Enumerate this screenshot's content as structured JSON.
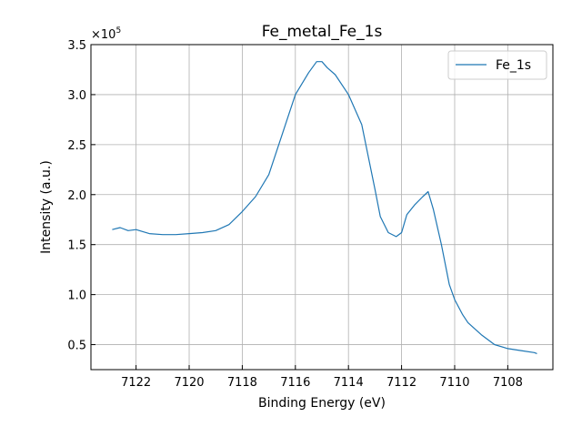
{
  "chart_data": {
    "type": "line",
    "title": "Fe_metal_Fe_1s",
    "xlabel": "Binding Energy (eV)",
    "ylabel": "Intensity (a.u.)",
    "y_scale_label": "×10",
    "y_scale_exp": "5",
    "x_reversed": true,
    "xlim": [
      7123.7,
      7106.3
    ],
    "ylim": [
      0.25,
      3.5
    ],
    "x_ticks": [
      7122,
      7120,
      7118,
      7116,
      7114,
      7112,
      7110,
      7108
    ],
    "y_ticks": [
      0.5,
      1.0,
      1.5,
      2.0,
      2.5,
      3.0,
      3.5
    ],
    "y_tick_labels": [
      "0.5",
      "1.0",
      "1.5",
      "2.0",
      "2.5",
      "3.0",
      "3.5"
    ],
    "grid": true,
    "legend_position": "top-right",
    "series": [
      {
        "name": "Fe_1s",
        "color": "#1f77b4",
        "x": [
          7122.9,
          7122.6,
          7122.3,
          7122.0,
          7121.5,
          7121.0,
          7120.5,
          7120.0,
          7119.5,
          7119.0,
          7118.5,
          7118.0,
          7117.5,
          7117.0,
          7116.5,
          7116.0,
          7115.5,
          7115.2,
          7115.0,
          7114.8,
          7114.5,
          7114.0,
          7113.5,
          7113.0,
          7112.8,
          7112.5,
          7112.2,
          7112.0,
          7111.8,
          7111.5,
          7111.2,
          7111.0,
          7110.8,
          7110.5,
          7110.2,
          7110.0,
          7109.7,
          7109.5,
          7109.0,
          7108.5,
          7108.0,
          7107.5,
          7107.0,
          7106.9
        ],
        "values": [
          1.65,
          1.67,
          1.64,
          1.65,
          1.61,
          1.6,
          1.6,
          1.61,
          1.62,
          1.64,
          1.7,
          1.83,
          1.98,
          2.2,
          2.6,
          3.0,
          3.22,
          3.33,
          3.33,
          3.27,
          3.2,
          3.0,
          2.7,
          2.05,
          1.78,
          1.62,
          1.58,
          1.62,
          1.8,
          1.9,
          1.98,
          2.03,
          1.85,
          1.5,
          1.1,
          0.95,
          0.8,
          0.72,
          0.6,
          0.5,
          0.46,
          0.44,
          0.42,
          0.41
        ]
      }
    ]
  }
}
